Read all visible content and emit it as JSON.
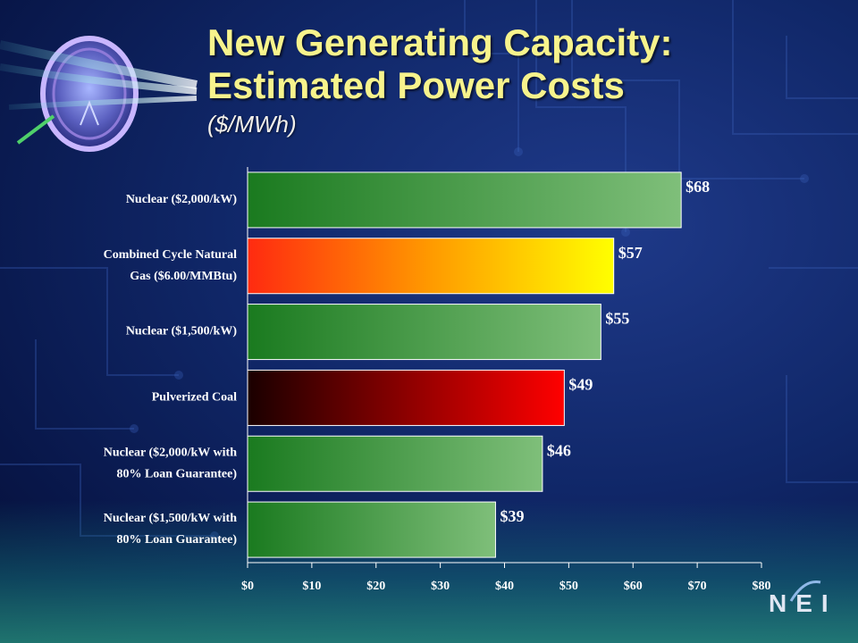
{
  "slide": {
    "title_line1": "New Generating Capacity:",
    "title_line2": "Estimated Power Costs",
    "subtitle": "($/MWh)",
    "logo_text": "NEI"
  },
  "chart_data": {
    "type": "bar",
    "orientation": "horizontal",
    "title": "New Generating Capacity: Estimated Power Costs",
    "subtitle": "($/MWh)",
    "categories": [
      "Nuclear ($2,000/kW)",
      "Combined Cycle Natural Gas ($6.00/MMBtu)",
      "Nuclear ($1,500/kW)",
      "Pulverized Coal",
      "Nuclear ($2,000/kW with 80% Loan Guarantee)",
      "Nuclear ($1,500/kW with 80% Loan Guarantee)"
    ],
    "category_lines": [
      [
        "Nuclear ($2,000/kW)"
      ],
      [
        "Combined Cycle Natural",
        "Gas ($6.00/MMBtu)"
      ],
      [
        "Nuclear ($1,500/kW)"
      ],
      [
        "Pulverized Coal"
      ],
      [
        "Nuclear ($2,000/kW with",
        "80% Loan Guarantee)"
      ],
      [
        "Nuclear ($1,500/kW with",
        "80% Loan Guarantee)"
      ]
    ],
    "values": [
      67.5,
      57,
      55,
      49.3,
      45.9,
      38.6
    ],
    "value_labels": [
      "$68",
      "$57",
      "$55",
      "$49",
      "$46",
      "$39"
    ],
    "bar_styles": [
      "green",
      "gas",
      "green",
      "coal",
      "green",
      "green"
    ],
    "xlim": [
      0,
      80
    ],
    "x_ticks": [
      0,
      10,
      20,
      30,
      40,
      50,
      60,
      70,
      80
    ],
    "x_tick_labels": [
      "$0",
      "$10",
      "$20",
      "$30",
      "$40",
      "$50",
      "$60",
      "$70",
      "$80"
    ],
    "xlabel": "",
    "ylabel": "",
    "grid": false,
    "legend": "none",
    "colors": {
      "green_dark": "#1a7a1f",
      "green_light": "#7fbf7a",
      "gas_start": "#ff2a10",
      "gas_mid": "#ff9a00",
      "gas_end": "#ffff00",
      "coal_start": "#1a0000",
      "coal_mid": "#8c0000",
      "coal_end": "#ff0000"
    }
  }
}
